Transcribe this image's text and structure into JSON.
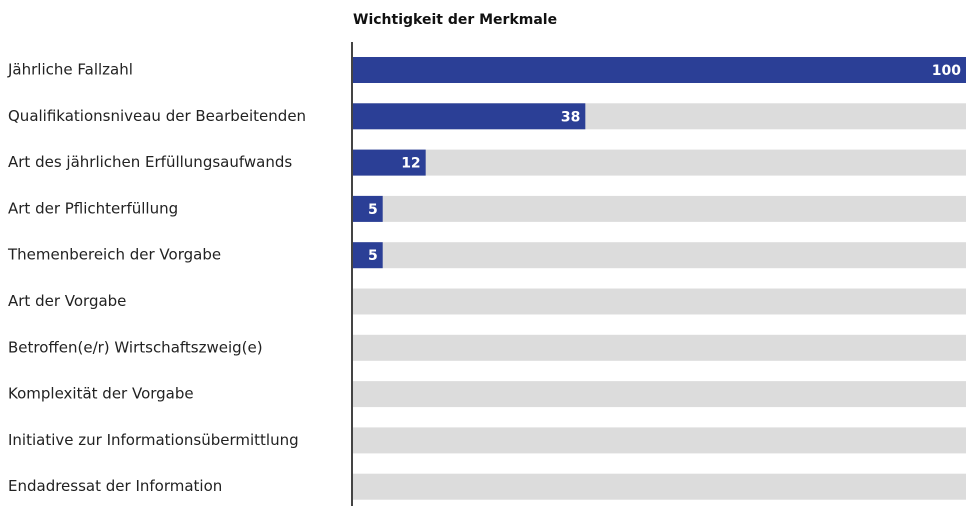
{
  "chart_data": {
    "type": "hbar",
    "title": "Wichtigkeit der Merkmale",
    "categories": [
      "Jährliche Fallzahl",
      "Qualifikationsniveau der Bearbeitenden",
      "Art des jährlichen Erfüllungsaufwands",
      "Art der Pflichterfüllung",
      "Themenbereich der Vorgabe",
      "Art der Vorgabe",
      "Betroffen(e/r) Wirtschaftszweig(e)",
      "Komplexität der Vorgabe",
      "Initiative zur Informationsübermittlung",
      "Endadressat der Information"
    ],
    "values": [
      100,
      38,
      12,
      5,
      5,
      0,
      0,
      0,
      0,
      0
    ],
    "color": "#2b3f96",
    "track_color": "#dcdcdc",
    "xlim": [
      0,
      100
    ]
  }
}
